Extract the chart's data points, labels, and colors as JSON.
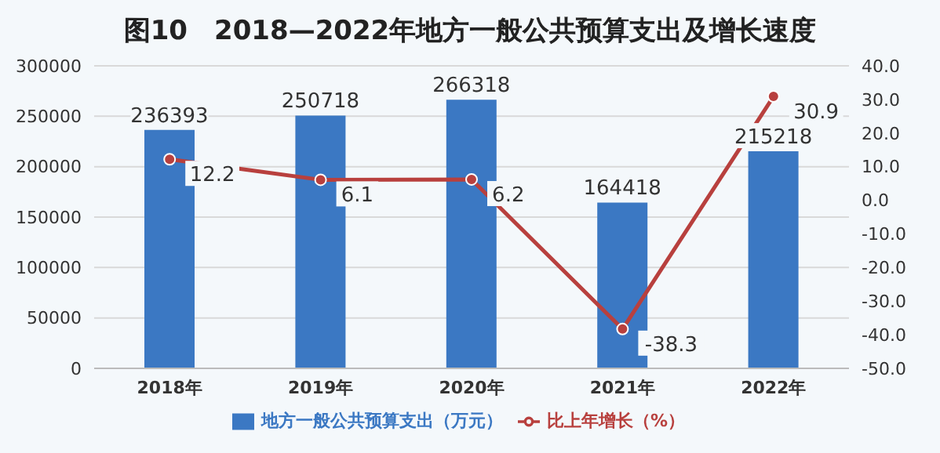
{
  "chart_data": {
    "type": "bar",
    "title": "图10　2018—2022年地方一般公共预算支出及增长速度",
    "categories": [
      "2018年",
      "2019年",
      "2020年",
      "2021年",
      "2022年"
    ],
    "series": [
      {
        "name": "地方一般公共预算支出（万元）",
        "color": "#3b78c3",
        "values": [
          236393,
          250718,
          266318,
          164418,
          215218
        ]
      },
      {
        "name": "比上年增长（%）",
        "type": "line",
        "axis": "y2",
        "color": "#b8403e",
        "values": [
          12.2,
          6.1,
          6.2,
          -38.3,
          30.9
        ]
      }
    ],
    "ylim": [
      0,
      300000
    ],
    "yticks": [
      0,
      50000,
      100000,
      150000,
      200000,
      250000,
      300000
    ],
    "y2lim": [
      -50,
      40
    ],
    "y2ticks": [
      {
        "value": 40,
        "label": "40.0"
      },
      {
        "value": 30,
        "label": "30.0"
      },
      {
        "value": 20,
        "label": "20.0"
      },
      {
        "value": 10,
        "label": "10.0"
      },
      {
        "value": 0,
        "label": "0.0"
      },
      {
        "value": -10,
        "label": "-10.0"
      },
      {
        "value": -20,
        "label": "-20.0"
      },
      {
        "value": -30,
        "label": "-30.0"
      },
      {
        "value": -40,
        "label": "-40.0"
      },
      {
        "value": -50,
        "label": "-50.0"
      }
    ],
    "grid": "y",
    "legend": "bottom",
    "marker": "circle",
    "data_labels": true
  }
}
